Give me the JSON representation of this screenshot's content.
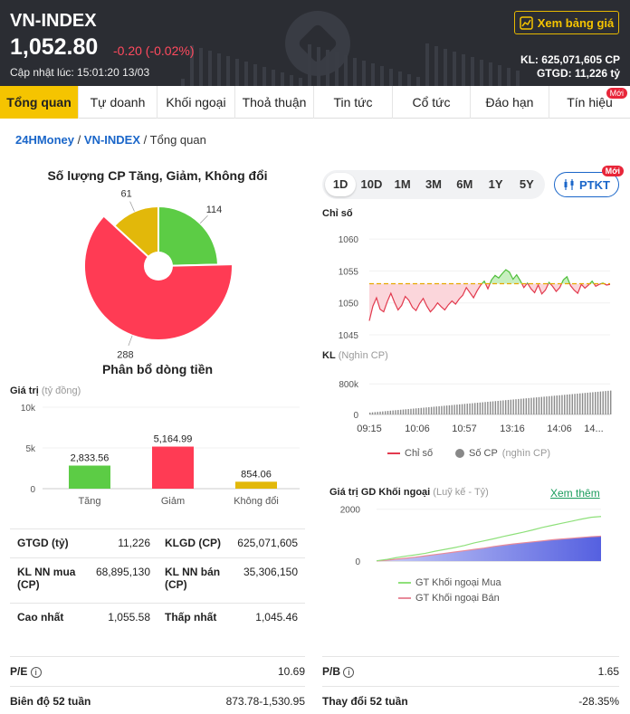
{
  "header": {
    "title": "VN-INDEX",
    "price": "1,052.80",
    "change": "-0.20 (-0.02%)",
    "updated": "Cập nhật lúc: 15:01:20 13/03",
    "board_button": "Xem bảng giá",
    "kl": "KL: 625,071,605 CP",
    "gtgd": "GTGD: 11,226 tỷ"
  },
  "tabs": [
    {
      "label": "Tổng quan",
      "active": true
    },
    {
      "label": "Tự doanh"
    },
    {
      "label": "Khối ngoại"
    },
    {
      "label": "Thoả thuận"
    },
    {
      "label": "Tin tức"
    },
    {
      "label": "Cổ tức"
    },
    {
      "label": "Đáo hạn"
    },
    {
      "label": "Tín hiệu",
      "badge": "Mới"
    }
  ],
  "breadcrumb": {
    "site": "24HMoney",
    "index": "VN-INDEX",
    "current": "Tổng quan",
    "sep": "/"
  },
  "left": {
    "pie_title": "Số lượng CP Tăng, Giảm, Không đổi",
    "flow_title": "Phân bổ dòng tiền",
    "flow_ylabel": "Giá trị",
    "flow_unit": "(tỷ đồng)",
    "stats": [
      [
        {
          "label": "GTGD (tỷ)",
          "value": "11,226"
        },
        {
          "label": "KLGD (CP)",
          "value": "625,071,605"
        }
      ],
      [
        {
          "label": "KL NN mua (CP)",
          "value": "68,895,130"
        },
        {
          "label": "KL NN bán (CP)",
          "value": "35,306,150"
        }
      ],
      [
        {
          "label": "Cao nhất",
          "value": "1,055.58"
        },
        {
          "label": "Thấp nhất",
          "value": "1,045.46"
        }
      ]
    ],
    "pe_label": "P/E",
    "pe_value": "10.69",
    "range_label": "Biên độ 52 tuần",
    "range_value": "873.78-1,530.95"
  },
  "right": {
    "periods": [
      "1D",
      "10D",
      "1M",
      "3M",
      "6M",
      "1Y",
      "5Y"
    ],
    "active_period": "1D",
    "ptkt_label": "PTKT",
    "ptkt_badge": "Mới",
    "index_label": "Chỉ số",
    "kl_label": "KL",
    "kl_unit": "(Nghìn CP)",
    "legend_index": "Chỉ số",
    "legend_volume": "Số CP",
    "legend_volume_unit": "(nghìn CP)",
    "foreign_title": "Giá trị GD Khối ngoại",
    "foreign_unit": "(Luỹ kế - Tỷ)",
    "see_more": "Xem thêm",
    "legend_buy": "GT Khối ngoại Mua",
    "legend_sell": "GT Khối ngoại Bán",
    "pb_label": "P/B",
    "pb_value": "1.65",
    "change52_label": "Thay đổi 52 tuần",
    "change52_value": "-28.35%"
  },
  "colors": {
    "up": "#5ccc45",
    "down": "#ff3b54",
    "flat": "#e2b80a",
    "accent": "#f5c400",
    "link": "#1a66c9",
    "header_bg": "#2b2d33"
  },
  "chart_data": [
    {
      "type": "pie",
      "title": "Số lượng CP Tăng, Giảm, Không đổi",
      "labels": [
        "Tăng",
        "Giảm",
        "Không đổi"
      ],
      "values": [
        114,
        288,
        61
      ]
    },
    {
      "type": "bar",
      "title": "Phân bổ dòng tiền",
      "categories": [
        "Tăng",
        "Giảm",
        "Không đổi"
      ],
      "values": [
        2833.56,
        5164.99,
        854.06
      ],
      "value_labels": [
        "2,833.56",
        "5,164.99",
        "854.06"
      ],
      "ylabel": "Giá trị (tỷ đồng)",
      "yticks": [
        "10k",
        "5k",
        "0"
      ],
      "ylim": [
        0,
        10000
      ]
    },
    {
      "type": "line",
      "name": "Chỉ số",
      "reference": 1053.0,
      "yticks": [
        1060,
        1055,
        1050,
        1045
      ],
      "ylim": [
        1045,
        1062
      ],
      "values": [
        1047.2,
        1049.5,
        1050.8,
        1049.0,
        1048.6,
        1050.2,
        1051.5,
        1050.1,
        1048.9,
        1049.6,
        1051.0,
        1050.4,
        1049.3,
        1048.8,
        1049.9,
        1050.7,
        1049.5,
        1048.6,
        1049.2,
        1050.0,
        1049.4,
        1048.9,
        1049.7,
        1050.3,
        1049.8,
        1050.6,
        1051.2,
        1052.4,
        1051.6,
        1050.8,
        1051.9,
        1052.8,
        1053.4,
        1052.2,
        1053.6,
        1054.3,
        1053.9,
        1054.6,
        1055.2,
        1054.8,
        1053.7,
        1054.4,
        1053.5,
        1052.4,
        1053.1,
        1052.2,
        1051.6,
        1052.8,
        1051.4,
        1052.0,
        1053.2,
        1052.6,
        1051.8,
        1052.4,
        1053.6,
        1054.1,
        1052.7,
        1052.0,
        1051.5,
        1052.9,
        1052.3,
        1052.8,
        1053.4,
        1052.6,
        1052.9,
        1053.1,
        1052.8,
        1052.9
      ]
    },
    {
      "type": "bar",
      "name": "Số CP",
      "xticks": [
        "09:15",
        "10:06",
        "10:57",
        "13:16",
        "14:06",
        "14..."
      ],
      "yticks": [
        "800k",
        "0"
      ],
      "ylim": [
        0,
        900000
      ],
      "values_start": 50000,
      "values_end": 625000
    },
    {
      "type": "area",
      "title": "Giá trị GD Khối ngoại",
      "yticks": [
        2000,
        0
      ],
      "ylim": [
        0,
        2200
      ],
      "series": [
        {
          "name": "GT Khối ngoại Mua",
          "values": [
            10,
            60,
            130,
            190,
            240,
            300,
            380,
            450,
            520,
            600,
            700,
            780,
            860,
            950,
            1030,
            1110,
            1200,
            1300,
            1380,
            1460,
            1540,
            1620,
            1690,
            1720
          ]
        },
        {
          "name": "GT Khối ngoại Bán",
          "values": [
            5,
            30,
            70,
            110,
            150,
            200,
            250,
            300,
            350,
            400,
            450,
            500,
            560,
            610,
            660,
            700,
            740,
            780,
            820,
            850,
            880,
            910,
            940,
            960
          ]
        }
      ]
    }
  ]
}
